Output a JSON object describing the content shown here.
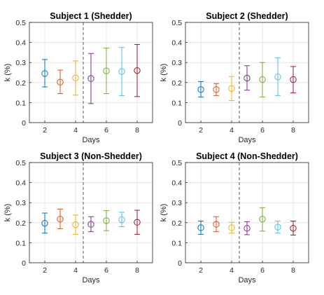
{
  "chart_data": [
    {
      "type": "scatter",
      "title": "Subject 1 (Shedder)",
      "xlabel": "Days",
      "ylabel": "k (%)",
      "xlim": [
        1,
        9
      ],
      "ylim": [
        0,
        0.5
      ],
      "xticks": [
        2,
        4,
        6,
        8
      ],
      "yticks": [
        0,
        0.1,
        0.2,
        0.3,
        0.4,
        0.5
      ],
      "grid": true,
      "divider_x": 4.5,
      "series": [
        {
          "x": 2,
          "y": 0.245,
          "lower": 0.178,
          "upper": 0.315
        },
        {
          "x": 3,
          "y": 0.202,
          "lower": 0.145,
          "upper": 0.262
        },
        {
          "x": 4,
          "y": 0.223,
          "lower": 0.137,
          "upper": 0.308
        },
        {
          "x": 5,
          "y": 0.22,
          "lower": 0.095,
          "upper": 0.345
        },
        {
          "x": 6,
          "y": 0.258,
          "lower": 0.145,
          "upper": 0.372
        },
        {
          "x": 7,
          "y": 0.255,
          "lower": 0.135,
          "upper": 0.375
        },
        {
          "x": 8,
          "y": 0.26,
          "lower": 0.13,
          "upper": 0.39
        }
      ]
    },
    {
      "type": "scatter",
      "title": "Subject 2 (Shedder)",
      "xlabel": "Days",
      "ylabel": "k (%)",
      "xlim": [
        1,
        9
      ],
      "ylim": [
        0,
        0.5
      ],
      "xticks": [
        2,
        4,
        6,
        8
      ],
      "yticks": [
        0,
        0.1,
        0.2,
        0.3,
        0.4,
        0.5
      ],
      "grid": true,
      "divider_x": 4.5,
      "series": [
        {
          "x": 2,
          "y": 0.165,
          "lower": 0.128,
          "upper": 0.205
        },
        {
          "x": 3,
          "y": 0.165,
          "lower": 0.135,
          "upper": 0.195
        },
        {
          "x": 4,
          "y": 0.17,
          "lower": 0.11,
          "upper": 0.23
        },
        {
          "x": 5,
          "y": 0.222,
          "lower": 0.162,
          "upper": 0.284
        },
        {
          "x": 6,
          "y": 0.215,
          "lower": 0.128,
          "upper": 0.3
        },
        {
          "x": 7,
          "y": 0.228,
          "lower": 0.135,
          "upper": 0.323
        },
        {
          "x": 8,
          "y": 0.215,
          "lower": 0.148,
          "upper": 0.28
        }
      ]
    },
    {
      "type": "scatter",
      "title": "Subject 3 (Non-Shedder)",
      "xlabel": "Days",
      "ylabel": "k (%)",
      "xlim": [
        1,
        9
      ],
      "ylim": [
        0,
        0.5
      ],
      "xticks": [
        2,
        4,
        6,
        8
      ],
      "yticks": [
        0,
        0.1,
        0.2,
        0.3,
        0.4,
        0.5
      ],
      "grid": true,
      "divider_x": 4.5,
      "series": [
        {
          "x": 2,
          "y": 0.197,
          "lower": 0.148,
          "upper": 0.248
        },
        {
          "x": 3,
          "y": 0.218,
          "lower": 0.17,
          "upper": 0.268
        },
        {
          "x": 4,
          "y": 0.19,
          "lower": 0.142,
          "upper": 0.238
        },
        {
          "x": 5,
          "y": 0.192,
          "lower": 0.155,
          "upper": 0.23
        },
        {
          "x": 6,
          "y": 0.21,
          "lower": 0.16,
          "upper": 0.26
        },
        {
          "x": 7,
          "y": 0.215,
          "lower": 0.18,
          "upper": 0.252
        },
        {
          "x": 8,
          "y": 0.202,
          "lower": 0.142,
          "upper": 0.262
        }
      ]
    },
    {
      "type": "scatter",
      "title": "Subject 4 (Non-Shedder)",
      "xlabel": "Days",
      "ylabel": "k (%)",
      "xlim": [
        1,
        9
      ],
      "ylim": [
        0,
        0.5
      ],
      "xticks": [
        2,
        4,
        6,
        8
      ],
      "yticks": [
        0,
        0.1,
        0.2,
        0.3,
        0.4,
        0.5
      ],
      "grid": true,
      "divider_x": 4.5,
      "series": [
        {
          "x": 2,
          "y": 0.175,
          "lower": 0.142,
          "upper": 0.208
        },
        {
          "x": 3,
          "y": 0.192,
          "lower": 0.155,
          "upper": 0.23
        },
        {
          "x": 4,
          "y": 0.175,
          "lower": 0.148,
          "upper": 0.202
        },
        {
          "x": 5,
          "y": 0.172,
          "lower": 0.14,
          "upper": 0.205
        },
        {
          "x": 6,
          "y": 0.218,
          "lower": 0.158,
          "upper": 0.275
        },
        {
          "x": 7,
          "y": 0.178,
          "lower": 0.148,
          "upper": 0.208
        },
        {
          "x": 8,
          "y": 0.172,
          "lower": 0.138,
          "upper": 0.208
        }
      ]
    }
  ],
  "colors": [
    "#0072BD",
    "#D95319",
    "#EDB120",
    "#7E2F8E",
    "#77AC30",
    "#4DBEEE",
    "#A2142F"
  ],
  "styles": {
    "divider": "#555555",
    "grid": "#e6e6e6",
    "axis": "#262626"
  }
}
